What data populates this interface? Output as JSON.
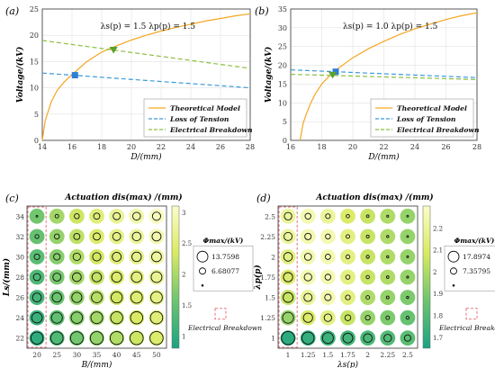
{
  "chart_data": [
    {
      "panel_label": "(a)",
      "type": "line",
      "annotation": "λs(p) = 1.5   λp(p) = 1.5",
      "xlabel": "D/(mm)",
      "ylabel": "Voltage/(kV)",
      "xlim": [
        14,
        28
      ],
      "ylim": [
        0,
        25
      ],
      "xticks": [
        14,
        16,
        18,
        20,
        22,
        24,
        26,
        28
      ],
      "yticks": [
        0,
        5,
        10,
        15,
        20,
        25
      ],
      "grid": true,
      "legend_position": "bottom-right",
      "series": [
        {
          "name": "Theoretical Model",
          "color": "#f5a623",
          "dash": "solid",
          "x": [
            14.0,
            14.2,
            14.6,
            15.0,
            15.5,
            16.0,
            17.0,
            18.0,
            19.0,
            20.0,
            21.0,
            22.0,
            23.0,
            24.0,
            25.0,
            26.0,
            27.0,
            28.0
          ],
          "y": [
            0.0,
            3.8,
            7.3,
            9.5,
            11.2,
            12.5,
            15.0,
            16.8,
            18.0,
            19.1,
            20.0,
            20.8,
            21.5,
            22.1,
            22.7,
            23.2,
            23.7,
            24.1
          ]
        },
        {
          "name": "Loss of Tension",
          "color": "#3a9ad9",
          "dash": "dashed",
          "x": [
            14,
            28
          ],
          "y": [
            12.8,
            10.0
          ]
        },
        {
          "name": "Electrical Breakdown",
          "color": "#8cbf3f",
          "dash": "dashed",
          "x": [
            14,
            28
          ],
          "y": [
            19.0,
            13.7
          ]
        }
      ],
      "markers": [
        {
          "shape": "square",
          "color": "#2f7fd6",
          "x": 16.2,
          "y": 12.4
        },
        {
          "shape": "triangle",
          "color": "#5aa02c",
          "x": 18.8,
          "y": 17.2
        }
      ]
    },
    {
      "panel_label": "(b)",
      "type": "line",
      "annotation": "λs(p) = 1.0   λp(p) = 1.5",
      "xlabel": "D/(mm)",
      "ylabel": "Voltage/(kV)",
      "xlim": [
        16,
        28
      ],
      "ylim": [
        0,
        35
      ],
      "xticks": [
        16,
        18,
        20,
        22,
        24,
        26,
        28
      ],
      "yticks": [
        0,
        5,
        10,
        15,
        20,
        25,
        30,
        35
      ],
      "grid": true,
      "legend_position": "bottom-right",
      "series": [
        {
          "name": "Theoretical Model",
          "color": "#f5a623",
          "dash": "solid",
          "x": [
            16.6,
            16.8,
            17.0,
            17.3,
            17.6,
            18.0,
            18.5,
            19.0,
            20.0,
            21.0,
            22.0,
            23.0,
            24.0,
            25.0,
            26.0,
            27.0,
            28.0
          ],
          "y": [
            0.0,
            4.5,
            7.0,
            10.0,
            12.5,
            15.0,
            17.2,
            19.0,
            22.0,
            24.4,
            26.4,
            28.2,
            29.7,
            31.0,
            32.2,
            33.2,
            34.0
          ]
        },
        {
          "name": "Loss of Tension",
          "color": "#3a9ad9",
          "dash": "dashed",
          "x": [
            16,
            28
          ],
          "y": [
            18.8,
            16.7
          ]
        },
        {
          "name": "Electrical Breakdown",
          "color": "#8cbf3f",
          "dash": "dashed",
          "x": [
            16,
            28
          ],
          "y": [
            17.6,
            16.2
          ]
        }
      ],
      "markers": [
        {
          "shape": "square",
          "color": "#2f7fd6",
          "x": 18.9,
          "y": 18.3
        },
        {
          "shape": "triangle",
          "color": "#5aa02c",
          "x": 18.7,
          "y": 17.4
        }
      ]
    },
    {
      "panel_label": "(c)",
      "type": "scatter",
      "title": "Actuation dis(max) /(mm)",
      "xlabel": "B/(mm)",
      "ylabel": "Ls/(mm)",
      "x_categories": [
        "20",
        "25",
        "30",
        "35",
        "40",
        "45",
        "50"
      ],
      "y_categories": [
        "22",
        "24",
        "26",
        "28",
        "30",
        "32",
        "34"
      ],
      "colorbar": {
        "min": 0.8,
        "max": 3.1,
        "ticks": [
          "1",
          "1.5",
          "2",
          "2.5",
          "3"
        ],
        "colors": [
          "#1aa383",
          "#6cc46f",
          "#d9ea63",
          "#fbfdc9"
        ]
      },
      "size_legend_title": "Φmax/(kV)",
      "size_legend": [
        "13.7598",
        "6.68077"
      ],
      "breakdown_label": "Electrical Breakdown",
      "breakdown_column": 0,
      "cells": [
        [
          1.0,
          1.3,
          1.6,
          1.85,
          2.05,
          2.25,
          2.4
        ],
        [
          1.1,
          1.45,
          1.75,
          1.95,
          2.2,
          2.35,
          2.5
        ],
        [
          1.2,
          1.55,
          1.85,
          2.1,
          2.3,
          2.45,
          2.6
        ],
        [
          1.3,
          1.65,
          1.95,
          2.2,
          2.4,
          2.55,
          2.7
        ],
        [
          1.4,
          1.75,
          2.05,
          2.3,
          2.5,
          2.65,
          2.8
        ],
        [
          1.5,
          1.85,
          2.15,
          2.4,
          2.6,
          2.75,
          2.9
        ],
        [
          1.6,
          1.95,
          2.25,
          2.5,
          2.7,
          2.85,
          3.0
        ]
      ],
      "voltages": [
        [
          13.0,
          13.2,
          13.4,
          13.5,
          13.6,
          13.7,
          13.7
        ],
        [
          12.0,
          12.3,
          12.6,
          12.8,
          13.0,
          13.1,
          13.2
        ],
        [
          11.0,
          11.4,
          11.8,
          12.1,
          12.4,
          12.6,
          12.7
        ],
        [
          10.0,
          10.5,
          11.0,
          11.4,
          11.8,
          12.0,
          12.2
        ],
        [
          9.0,
          9.6,
          10.2,
          10.7,
          11.1,
          11.4,
          11.6
        ],
        [
          8.0,
          8.7,
          9.4,
          10.0,
          10.5,
          10.9,
          11.1
        ],
        [
          6.7,
          7.8,
          8.7,
          9.4,
          10.0,
          10.4,
          10.7
        ]
      ]
    },
    {
      "panel_label": "(d)",
      "type": "scatter",
      "title": "Actuation dis(max) /(mm)",
      "xlabel": "λs(p)",
      "ylabel": "λp(p)",
      "x_categories": [
        "1",
        "1.25",
        "1.5",
        "1.75",
        "2",
        "2.25",
        "2.5"
      ],
      "y_categories": [
        "1",
        "1.25",
        "1.5",
        "1.75",
        "2",
        "2.25",
        "2.5"
      ],
      "colorbar": {
        "min": 1.65,
        "max": 2.3,
        "ticks": [
          "1.7",
          "1.8",
          "1.9",
          "2",
          "2.1",
          "2.2"
        ],
        "colors": [
          "#1aa383",
          "#6cc46f",
          "#d9ea63",
          "#fbfdc9"
        ]
      },
      "size_legend_title": "Φmax/(kV)",
      "size_legend": [
        "17.8974",
        "7.35795"
      ],
      "breakdown_label": "Electrical Breakdown",
      "breakdown_column": 0,
      "cells": [
        [
          1.7,
          1.72,
          1.74,
          1.76,
          1.78,
          1.8,
          1.82
        ],
        [
          1.95,
          2.1,
          2.15,
          2.05,
          1.95,
          1.9,
          1.85
        ],
        [
          2.05,
          2.2,
          2.25,
          2.15,
          2.0,
          1.95,
          1.9
        ],
        [
          2.1,
          2.25,
          2.25,
          2.15,
          2.05,
          2.0,
          1.95
        ],
        [
          2.15,
          2.25,
          2.25,
          2.15,
          2.05,
          2.0,
          1.95
        ],
        [
          2.2,
          2.25,
          2.25,
          2.15,
          2.05,
          2.0,
          1.95
        ],
        [
          2.2,
          2.25,
          2.2,
          2.1,
          2.05,
          2.0,
          1.95
        ]
      ],
      "voltages": [
        [
          17.5,
          16.5,
          15.5,
          14.5,
          13.5,
          12.5,
          11.5
        ],
        [
          15.5,
          14.0,
          12.5,
          11.0,
          10.0,
          9.0,
          8.5
        ],
        [
          14.5,
          13.0,
          11.5,
          10.0,
          9.0,
          8.2,
          7.8
        ],
        [
          14.0,
          12.5,
          11.0,
          9.5,
          8.7,
          8.0,
          7.6
        ],
        [
          13.5,
          12.0,
          10.5,
          9.3,
          8.5,
          7.8,
          7.5
        ],
        [
          13.0,
          11.5,
          10.2,
          9.0,
          8.3,
          7.7,
          7.4
        ],
        [
          12.5,
          11.0,
          10.0,
          8.8,
          8.1,
          7.6,
          7.4
        ]
      ]
    }
  ]
}
